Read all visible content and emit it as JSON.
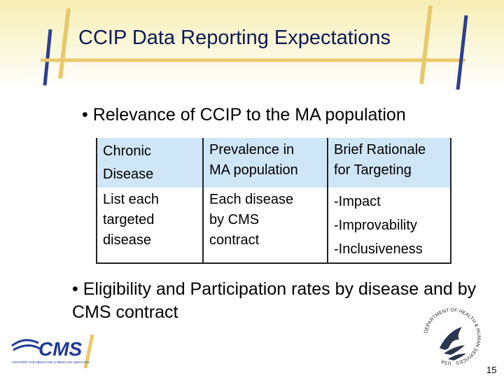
{
  "slide": {
    "title": "CCIP Data Reporting Expectations",
    "bullet_1": "• Relevance of CCIP to the MA population",
    "bullet_2": "• Eligibility and Participation rates by disease and by CMS contract",
    "page_number": "15"
  },
  "table": {
    "headers": [
      "Chronic\nDisease",
      "Prevalence in\nMA population",
      "Brief Rationale\nfor Targeting"
    ],
    "row": [
      "List each\ntargeted\ndisease",
      "Each disease\nby CMS\ncontract",
      "-Impact\n-Improvability\n-Inclusiveness"
    ]
  },
  "logos": {
    "cms_logo": "CMS",
    "cms_tagline": "CENTERS FOR MEDICARE & MEDICAID SERVICES",
    "hhs_seal_text": "DEPARTMENT OF HEALTH & HUMAN SERVICES · USA"
  },
  "colors": {
    "title": "#0a1a56",
    "frame_gold": "#e8c96a",
    "frame_blue": "#2e3f8f",
    "table_header_bg": "#cfe6f7",
    "cms_blue": "#1f3a93"
  }
}
